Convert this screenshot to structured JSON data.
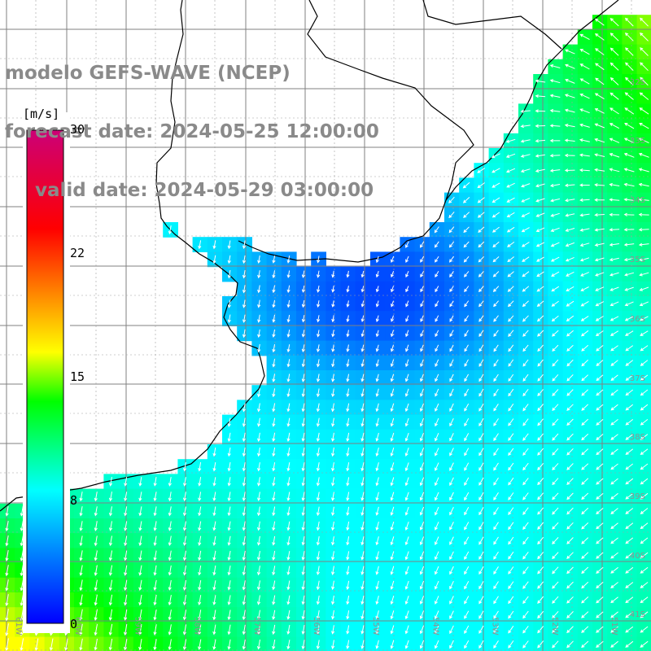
{
  "title": {
    "line1": "modelo GEFS-WAVE (NCEP)",
    "line2": "forecast date: 2024-05-25 12:00:00",
    "line3": "valid date: 2024-05-29 03:00:00"
  },
  "colorbar": {
    "unit": "[m/s]",
    "ticks": [
      "30",
      "22",
      "15",
      "8",
      "0"
    ],
    "tick_values": [
      30,
      22,
      15,
      8,
      0
    ],
    "range": [
      0,
      30
    ],
    "colors": [
      "#0000ff",
      "#0096ff",
      "#00ffff",
      "#00ff00",
      "#ffff00",
      "#ff6600",
      "#ff0000",
      "#cc0066"
    ]
  },
  "map": {
    "lat_labels": [
      "32S",
      "33S",
      "34S",
      "35S",
      "36S",
      "37S",
      "38S",
      "39S",
      "40S",
      "41S"
    ],
    "lon_labels": [
      "61W",
      "60W",
      "59W",
      "58W",
      "57W",
      "56W",
      "55W",
      "54W",
      "53W",
      "52W",
      "51W"
    ],
    "wind_field": "northeasterly flow turning southward, weakest (~2-5 m/s) near the Rio de la Plata, increasing to ~10-14 m/s in the southwest",
    "colors": {
      "land": "#ffffff",
      "coast": "#000000",
      "grid": "#808080",
      "arrow": "#ffffff"
    }
  }
}
